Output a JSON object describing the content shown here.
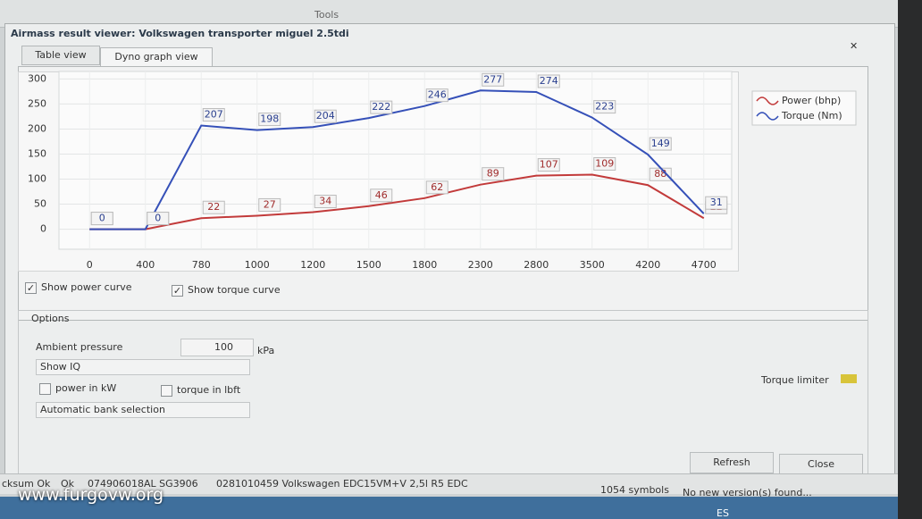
{
  "toolbar": {
    "title": "Tools"
  },
  "window": {
    "title": "Airmass result viewer: Volkswagen transporter miguel 2.5tdi"
  },
  "tabs": [
    "Table view",
    "Dyno graph view"
  ],
  "chart_data": {
    "type": "line",
    "categories": [
      0,
      400,
      780,
      1000,
      1200,
      1500,
      1800,
      2300,
      2800,
      3500,
      4200,
      4700
    ],
    "series": [
      {
        "name": "Power (bhp)",
        "color": "#c23a3a",
        "values": [
          0,
          0,
          22,
          27,
          34,
          46,
          62,
          89,
          107,
          109,
          88,
          22
        ]
      },
      {
        "name": "Torque (Nm)",
        "color": "#3550b8",
        "values": [
          0,
          0,
          207,
          198,
          204,
          222,
          246,
          277,
          274,
          223,
          149,
          31
        ]
      }
    ],
    "ylim": [
      -40,
      315
    ],
    "yticks": [
      0,
      50,
      100,
      150,
      200,
      250,
      300
    ],
    "grid": true,
    "legend": "top-right"
  },
  "checkboxes": [
    {
      "label": "Show power curve",
      "checked": true
    },
    {
      "label": "Show torque curve",
      "checked": true
    }
  ],
  "options": {
    "title": "Options",
    "ambient_pressure_label": "Ambient pressure",
    "ambient_pressure": 100,
    "unit": "kPa",
    "iq_select": "Show IQ",
    "power_kw": "power in kW",
    "torque_lbft": "torque in lbft",
    "bank_select": "Automatic bank selection",
    "torque_limiter": "Torque limiter"
  },
  "buttons": [
    "Refresh",
    "Close"
  ],
  "status_bar": [
    "cksum Ok",
    "Ok",
    "074906018AL SG3906",
    "0281010459 Volkswagen EDC15VM+V 2,5l R5 EDC",
    "1054 symbols",
    "No new version(s) found..."
  ],
  "watermark": "www.furgovw.org",
  "taskbar": {
    "language": "ES"
  }
}
